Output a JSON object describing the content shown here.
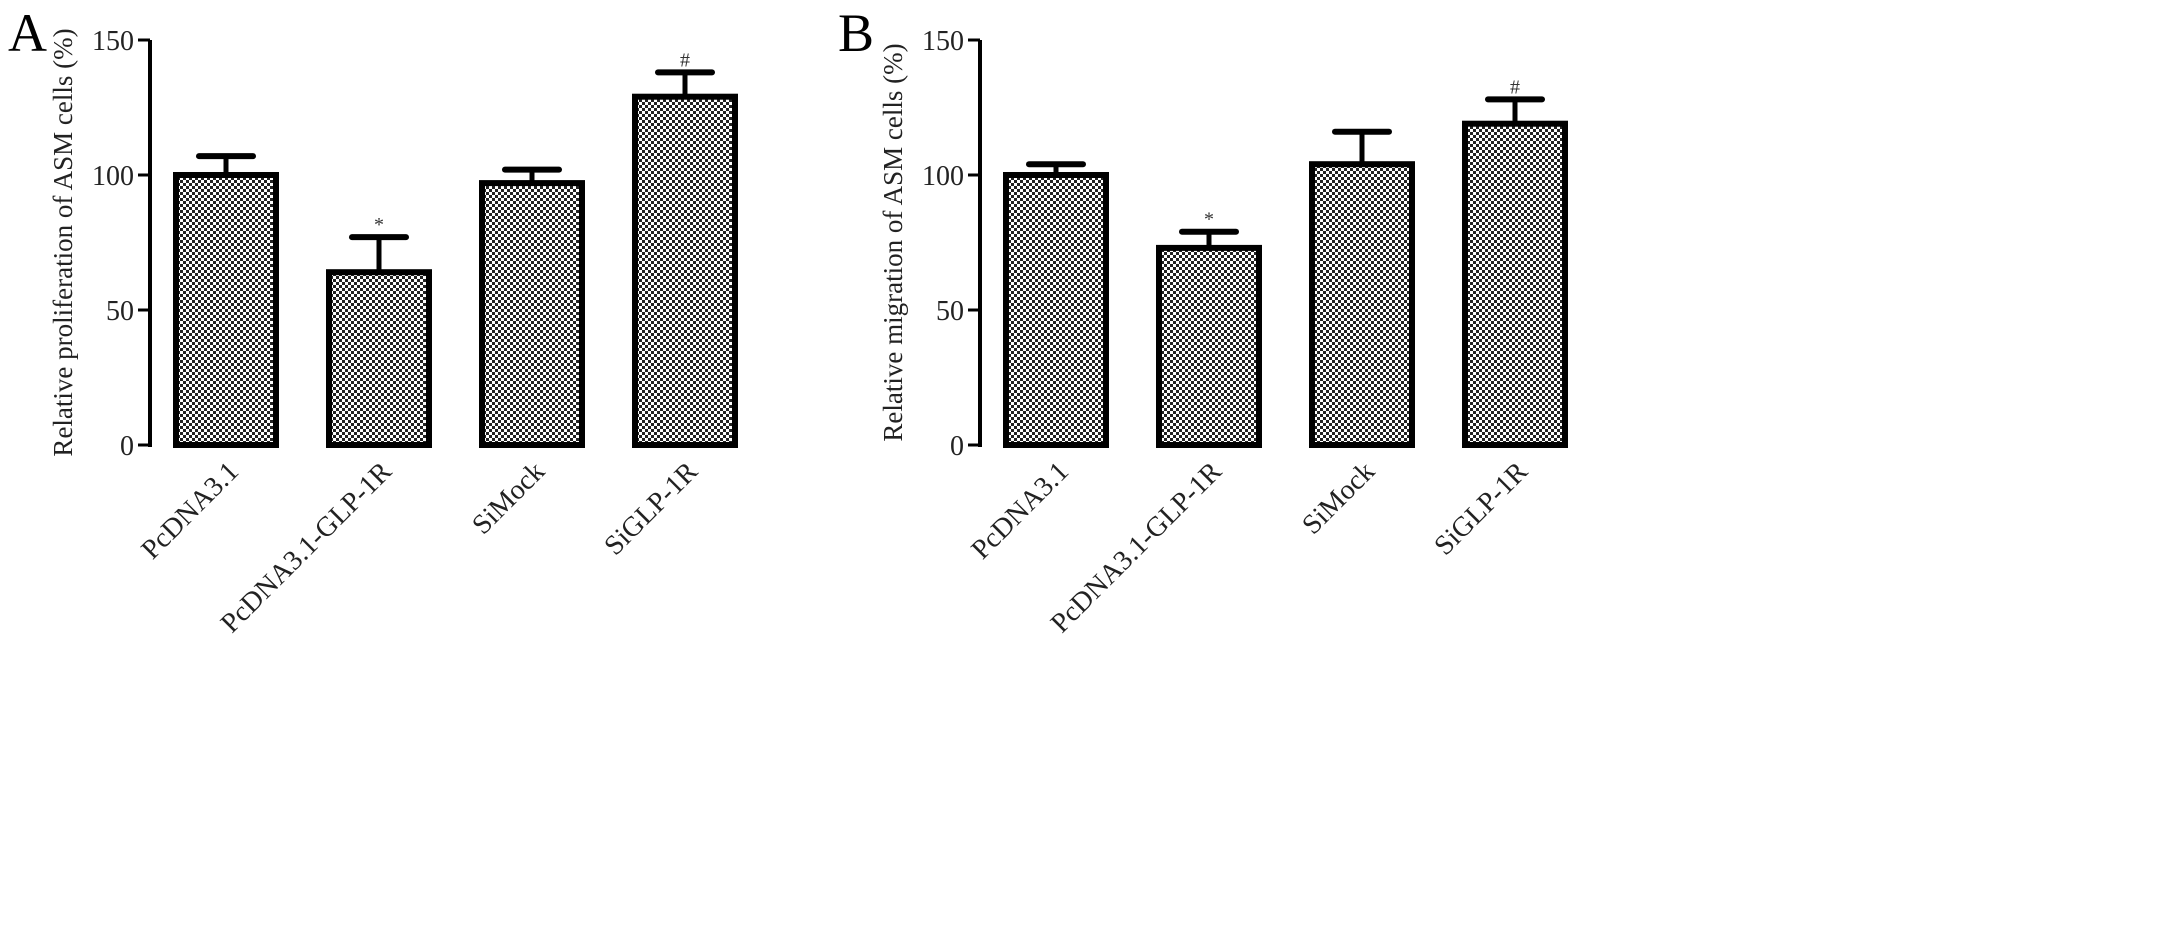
{
  "chart_data": [
    {
      "type": "bar",
      "panel": "A",
      "title": "",
      "xlabel": "",
      "ylabel": "Relative proliferation of ASM cells (%)",
      "ylim": [
        0,
        150
      ],
      "yticks": [
        "0",
        "50",
        "100",
        "150"
      ],
      "categories": [
        "PcDNA3.1",
        "PcDNA3.1-GLP-1R",
        "SiMock",
        "SiGLP-1R"
      ],
      "values": [
        100,
        64,
        97,
        129
      ],
      "error_upper": [
        7,
        13,
        5,
        9
      ],
      "annotations": [
        "",
        "*",
        "",
        "#"
      ],
      "grid": false
    },
    {
      "type": "bar",
      "panel": "B",
      "title": "",
      "xlabel": "",
      "ylabel": "Relative migration of ASM cells (%)",
      "ylim": [
        0,
        150
      ],
      "yticks": [
        "0",
        "50",
        "100",
        "150"
      ],
      "categories": [
        "PcDNA3.1",
        "PcDNA3.1-GLP-1R",
        "SiMock",
        "SiGLP-1R"
      ],
      "values": [
        100,
        73,
        104,
        119
      ],
      "error_upper": [
        4,
        6,
        12,
        9
      ],
      "annotations": [
        "",
        "*",
        "",
        "#"
      ],
      "grid": false
    }
  ],
  "colors": {
    "stroke": "#000000",
    "fill_dark": "#222222",
    "fill_light": "#ffffff"
  }
}
